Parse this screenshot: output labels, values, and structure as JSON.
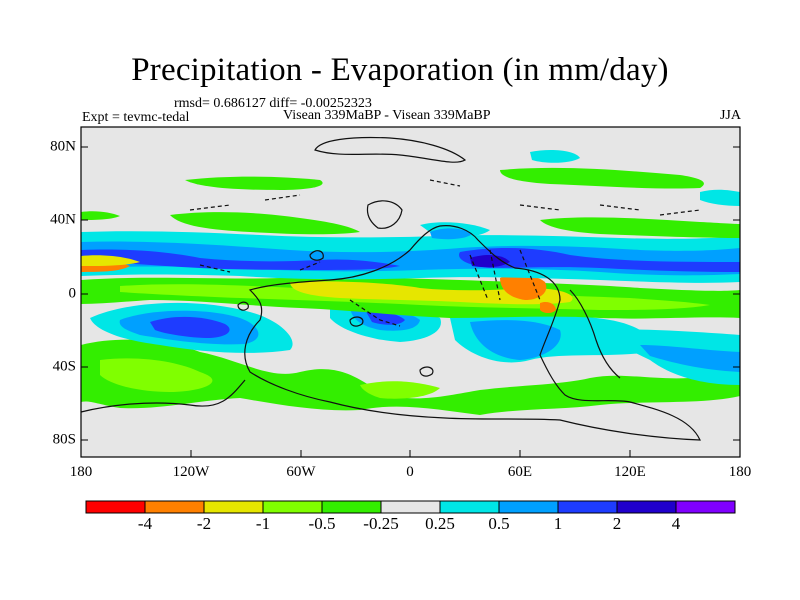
{
  "plot": {
    "title": "Precipitation - Evaporation (in mm/day)",
    "stats": "rmsd= 0.686127 diff= -0.00252323",
    "experiment": "Expt = tevmc-tedal",
    "comparison": "Visean 339MaBP - Visean 339MaBP",
    "season": "JJA"
  },
  "axes": {
    "x_ticks": [
      "180",
      "120W",
      "60W",
      "0",
      "60E",
      "120E",
      "180"
    ],
    "y_ticks": [
      "80N",
      "40N",
      "0",
      "40S",
      "80S"
    ]
  },
  "colorbar": {
    "labels": [
      "-4",
      "-2",
      "-1",
      "-0.5",
      "-0.25",
      "0.25",
      "0.5",
      "1",
      "2",
      "4"
    ],
    "colors": [
      "#ff0000",
      "#ff8000",
      "#e6e600",
      "#80ff00",
      "#33ee00",
      "#e6e6e6",
      "#00e6e6",
      "#00a0ff",
      "#1e3cff",
      "#2000cc",
      "#8000ff"
    ]
  },
  "chart_data": {
    "type": "heatmap",
    "title": "Precipitation - Evaporation (in mm/day)",
    "x_range": [
      "180W",
      "180E"
    ],
    "y_range": [
      "90S",
      "90N"
    ],
    "levels": [
      -4,
      -2,
      -1,
      -0.5,
      -0.25,
      0.25,
      0.5,
      1,
      2,
      4
    ],
    "units": "mm/day"
  }
}
